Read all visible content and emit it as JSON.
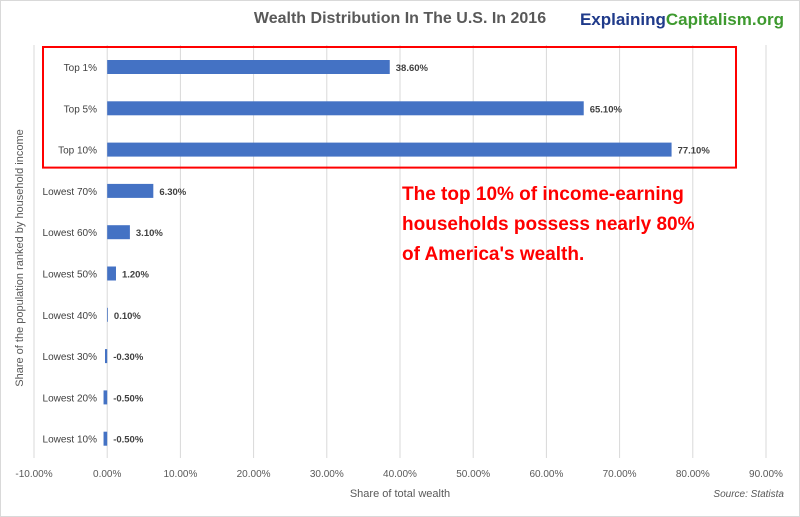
{
  "brand": {
    "part1": "Explaining",
    "part2": "Capitalism.org"
  },
  "annotation": "The top 10% of income-earning households possess nearly 80% of America's wealth.",
  "source": "Source: Statista",
  "colors": {
    "bar": "#4472c4",
    "highlight_box": "#ff0000",
    "grid": "#d9d9d9",
    "text": "#595959"
  },
  "chart_data": {
    "type": "bar",
    "orientation": "horizontal",
    "title": "Wealth Distribution In The U.S. In 2016",
    "xlabel": "Share of total wealth",
    "ylabel": "Share of the population ranked by household income",
    "categories": [
      "Top 1%",
      "Top 5%",
      "Top 10%",
      "Lowest 70%",
      "Lowest 60%",
      "Lowest 50%",
      "Lowest 40%",
      "Lowest 30%",
      "Lowest 20%",
      "Lowest 10%"
    ],
    "values": [
      38.6,
      65.1,
      77.1,
      6.3,
      3.1,
      1.2,
      0.1,
      -0.3,
      -0.5,
      -0.5
    ],
    "value_labels": [
      "38.60%",
      "65.10%",
      "77.10%",
      "6.30%",
      "3.10%",
      "1.20%",
      "0.10%",
      "-0.30%",
      "-0.50%",
      "-0.50%"
    ],
    "xlim": [
      -10,
      90
    ],
    "xticks": [
      "-10.00%",
      "0.00%",
      "10.00%",
      "20.00%",
      "30.00%",
      "40.00%",
      "50.00%",
      "60.00%",
      "70.00%",
      "80.00%",
      "90.00%"
    ],
    "grid": "vertical",
    "highlighted_categories": [
      "Top 1%",
      "Top 5%",
      "Top 10%"
    ]
  }
}
